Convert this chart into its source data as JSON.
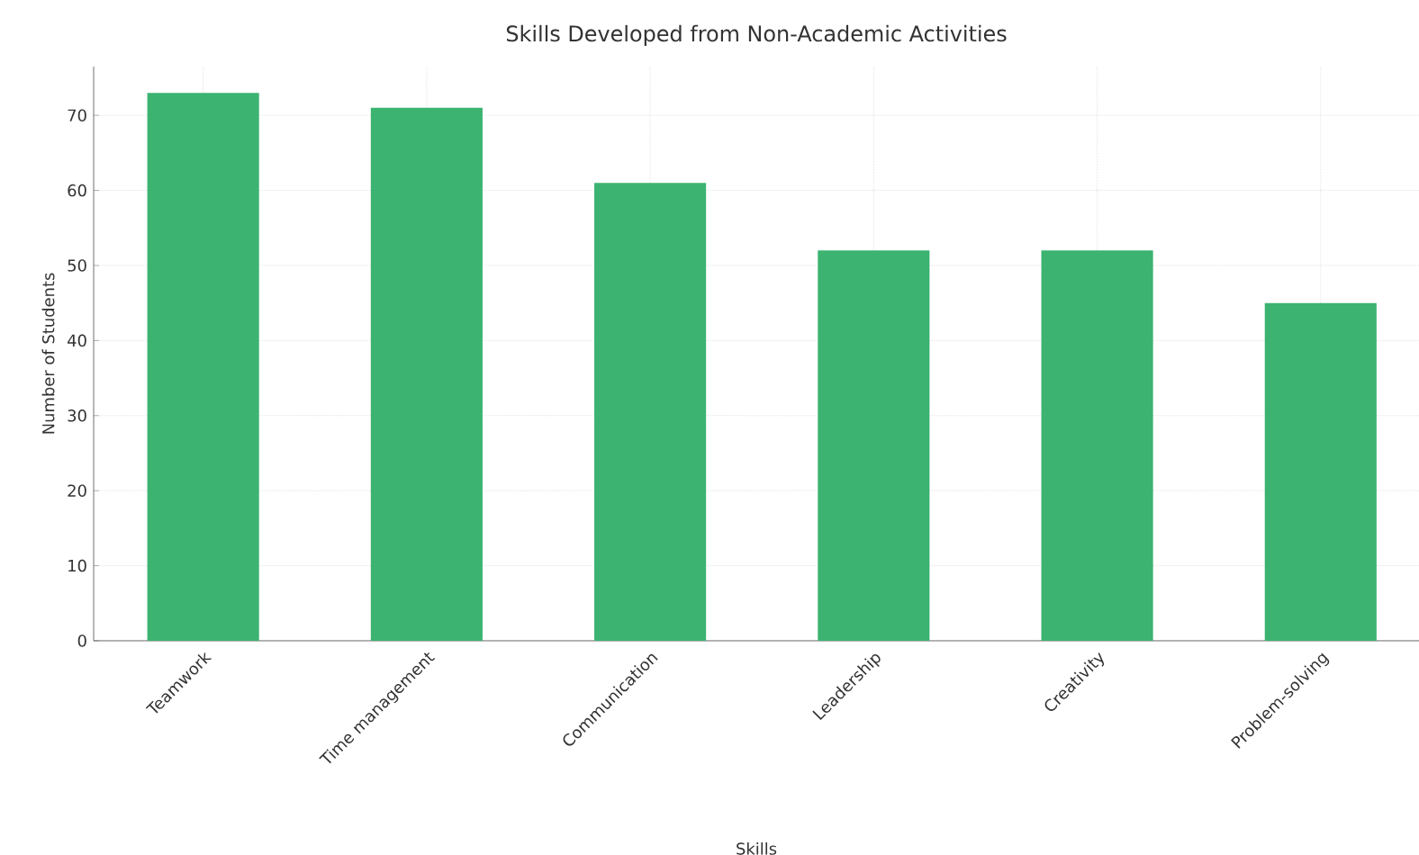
{
  "chart_data": {
    "type": "bar",
    "title": "Skills Developed from Non-Academic Activities",
    "xlabel": "Skills",
    "ylabel": "Number of Students",
    "categories": [
      "Teamwork",
      "Time management",
      "Communication",
      "Leadership",
      "Creativity",
      "Problem-solving"
    ],
    "values": [
      73,
      71,
      61,
      52,
      52,
      45
    ],
    "color": "#3cb371",
    "ylim": [
      0,
      76.5
    ],
    "yticks": [
      0,
      10,
      20,
      30,
      40,
      50,
      60,
      70
    ],
    "grid": true
  }
}
